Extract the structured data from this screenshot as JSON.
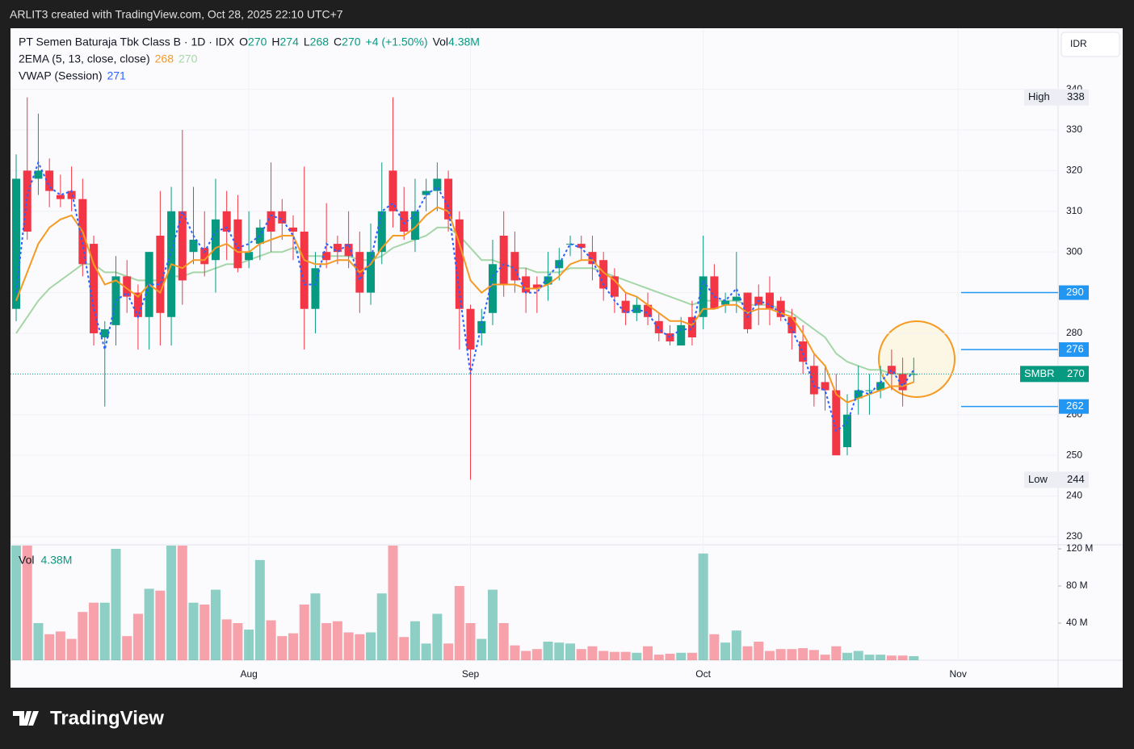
{
  "page": {
    "top_bar": "ARLIT3 created with TradingView.com, Oct 28, 2025 22:10 UTC+7",
    "brand": "TradingView",
    "currency": "IDR"
  },
  "chart_data": {
    "type": "candlestick",
    "title": "PT Semen Baturaja Tbk Class B · 1D · IDX",
    "ohlc_labels": [
      "O",
      "H",
      "L",
      "C"
    ],
    "change": "+4 (+1.50%)",
    "volume_title": "Vol",
    "volume_last": "4.38M",
    "categories": [
      null,
      null,
      null,
      null,
      null,
      null,
      null,
      null,
      null,
      null,
      null,
      null,
      null,
      null,
      null,
      null,
      null,
      null,
      null,
      null,
      null,
      "Aug",
      null,
      null,
      null,
      null,
      null,
      null,
      null,
      null,
      null,
      null,
      null,
      null,
      null,
      null,
      null,
      null,
      null,
      null,
      null,
      "Sep",
      null,
      null,
      null,
      null,
      null,
      null,
      null,
      null,
      null,
      null,
      null,
      null,
      null,
      null,
      null,
      null,
      null,
      null,
      null,
      null,
      "Oct",
      null,
      null,
      null,
      null,
      null,
      null,
      null,
      null,
      null,
      null,
      null,
      null,
      null,
      null,
      null,
      null,
      null,
      null,
      null,
      null,
      null,
      null,
      "Nov"
    ],
    "open": [
      286,
      320,
      318,
      320,
      314,
      315,
      313,
      302,
      279,
      282,
      294,
      290,
      284,
      304,
      284,
      310,
      300,
      301,
      298,
      310,
      308,
      298,
      302,
      310,
      310,
      306,
      305,
      286,
      300,
      302,
      302,
      300,
      290,
      300,
      320,
      310,
      303,
      314,
      315,
      318,
      308,
      286,
      280,
      285,
      304,
      300,
      294,
      292,
      292,
      296,
      302,
      302,
      300,
      298,
      294,
      288,
      285,
      287,
      283,
      280,
      277,
      284,
      284,
      294,
      287,
      288,
      290,
      289,
      290,
      288,
      284,
      278,
      272,
      268,
      266,
      252,
      264,
      266,
      266,
      272,
      270,
      270,
      null,
      null,
      null,
      null
    ],
    "high": [
      324,
      338,
      334,
      323,
      319,
      321,
      318,
      304,
      283,
      299,
      298,
      292,
      300,
      315,
      316,
      330,
      316,
      310,
      318,
      315,
      314,
      310,
      308,
      322,
      313,
      309,
      321,
      300,
      312,
      304,
      310,
      305,
      307,
      322,
      338,
      316,
      318,
      318,
      322,
      320,
      310,
      287,
      286,
      303,
      310,
      305,
      296,
      294,
      300,
      301,
      304,
      304,
      304,
      300,
      296,
      290,
      289,
      290,
      285,
      282,
      284,
      288,
      304,
      297,
      290,
      300,
      290,
      292,
      294,
      289,
      286,
      282,
      275,
      272,
      270,
      265,
      272,
      270,
      272,
      276,
      274,
      274,
      null,
      null,
      null,
      null
    ],
    "low": [
      283,
      303,
      314,
      311,
      311,
      310,
      294,
      277,
      262,
      277,
      285,
      276,
      276,
      277,
      277,
      287,
      297,
      294,
      290,
      298,
      295,
      296,
      298,
      300,
      303,
      298,
      276,
      280,
      296,
      297,
      296,
      285,
      287,
      297,
      306,
      303,
      300,
      310,
      310,
      305,
      276,
      244,
      277,
      282,
      289,
      290,
      285,
      285,
      288,
      293,
      299,
      298,
      293,
      288,
      285,
      282,
      283,
      282,
      278,
      277,
      277,
      277,
      281,
      286,
      285,
      285,
      280,
      282,
      282,
      283,
      276,
      270,
      262,
      261,
      250,
      250,
      260,
      260,
      264,
      266,
      262,
      268,
      null,
      null,
      null,
      null
    ],
    "close": [
      318,
      305,
      320,
      315,
      313,
      313,
      297,
      280,
      281,
      294,
      289,
      284,
      300,
      285,
      310,
      293,
      303,
      297,
      308,
      305,
      296,
      300,
      306,
      305,
      307,
      305,
      286,
      296,
      298,
      300,
      299,
      290,
      300,
      310,
      310,
      305,
      310,
      315,
      318,
      308,
      286,
      276,
      283,
      297,
      292,
      293,
      290,
      291,
      294,
      298,
      302,
      301,
      297,
      291,
      289,
      285,
      287,
      284,
      280,
      278,
      282,
      279,
      294,
      286,
      288,
      289,
      281,
      287,
      286,
      284,
      280,
      273,
      265,
      266,
      250,
      260,
      266,
      266,
      268,
      270,
      266,
      270,
      null,
      null,
      null,
      null
    ],
    "ylim": [
      228,
      354.8
    ],
    "yticks": [
      230,
      240,
      250,
      260,
      270,
      280,
      290,
      300,
      310,
      320,
      330,
      340
    ],
    "up_color": "#089981",
    "down_color": "#f23645",
    "volume": [
      125,
      125,
      40,
      28,
      31,
      23,
      52,
      62,
      62,
      120,
      26,
      50,
      77,
      75,
      125,
      125,
      62,
      60,
      76,
      44,
      40,
      33,
      108,
      43,
      26,
      29,
      60,
      72,
      40,
      42,
      30,
      28,
      30,
      72,
      125,
      25,
      42,
      18,
      50,
      18,
      80,
      40,
      23,
      76,
      40,
      16,
      10,
      12,
      20,
      19,
      18,
      12,
      15,
      10,
      9,
      9,
      8,
      15,
      6,
      7,
      8,
      8,
      115,
      28,
      19,
      32,
      15,
      20,
      10,
      12,
      12,
      13,
      11,
      6,
      15,
      8,
      10,
      6,
      6,
      5,
      5,
      4.38,
      null,
      null,
      null,
      null
    ],
    "volume_ylim": [
      0,
      123.5
    ],
    "volume_yticks": [
      {
        "value": 40,
        "label": "40 M"
      },
      {
        "value": 80,
        "label": "80 M"
      },
      {
        "value": 120,
        "label": "120 M"
      }
    ],
    "ema_label": "2EMA (5, 13, close, close)",
    "ema_fast": {
      "color": "#f59a23",
      "values": [
        288,
        295,
        302,
        306,
        308,
        309,
        305,
        297,
        292,
        293,
        291,
        289,
        292,
        290,
        297,
        296,
        298,
        298,
        301,
        302,
        300,
        300,
        302,
        303,
        304,
        304,
        298,
        297,
        297,
        298,
        298,
        295,
        297,
        301,
        304,
        304,
        306,
        309,
        311,
        310,
        302,
        293,
        290,
        292,
        292,
        292,
        291,
        291,
        292,
        294,
        297,
        298,
        298,
        295,
        293,
        290,
        289,
        287,
        285,
        283,
        283,
        282,
        286,
        286,
        287,
        287,
        285,
        286,
        286,
        285,
        284,
        280,
        275,
        272,
        265,
        263,
        264,
        265,
        266,
        267,
        267,
        268,
        null,
        null,
        null,
        null
      ]
    },
    "ema_slow": {
      "color": "#a5d6a7",
      "values": [
        280,
        284,
        288,
        291,
        293,
        295,
        297,
        297,
        295,
        295,
        294,
        293,
        293,
        293,
        294,
        294,
        295,
        295,
        296,
        297,
        297,
        298,
        299,
        300,
        300,
        301,
        299,
        299,
        299,
        299,
        299,
        298,
        298,
        299,
        301,
        302,
        303,
        304,
        306,
        306,
        304,
        301,
        298,
        298,
        297,
        296,
        296,
        295,
        295,
        295,
        296,
        296,
        296,
        295,
        294,
        293,
        292,
        291,
        290,
        289,
        288,
        287,
        288,
        288,
        288,
        288,
        287,
        287,
        287,
        286,
        285,
        283,
        281,
        279,
        275,
        273,
        272,
        271,
        271,
        270,
        270,
        270,
        null,
        null,
        null,
        null
      ]
    },
    "vwap_label": "VWAP (Session)",
    "vwap": {
      "color": "#2962ff",
      "values": [
        290,
        314,
        322,
        316,
        314,
        315,
        302,
        286,
        276,
        288,
        290,
        284,
        292,
        292,
        300,
        310,
        304,
        300,
        305,
        306,
        301,
        302,
        304,
        309,
        308,
        304,
        292,
        292,
        302,
        300,
        302,
        293,
        298,
        310,
        312,
        307,
        309,
        314,
        316,
        311,
        290,
        270,
        282,
        294,
        297,
        296,
        290,
        290,
        294,
        297,
        302,
        301,
        298,
        292,
        288,
        285,
        286,
        285,
        281,
        279,
        281,
        281,
        293,
        289,
        288,
        291,
        284,
        288,
        287,
        285,
        281,
        275,
        267,
        266,
        256,
        258,
        266,
        265,
        268,
        271,
        267,
        271,
        null,
        null,
        null,
        null
      ]
    },
    "price_labels": [
      {
        "label": "High",
        "value": 338
      },
      {
        "label": "Low",
        "value": 244
      },
      {
        "label": "SMBR",
        "value": 270
      }
    ],
    "hlines": [
      290,
      276,
      262
    ],
    "hline_color": "#2196f3",
    "grid": true
  }
}
